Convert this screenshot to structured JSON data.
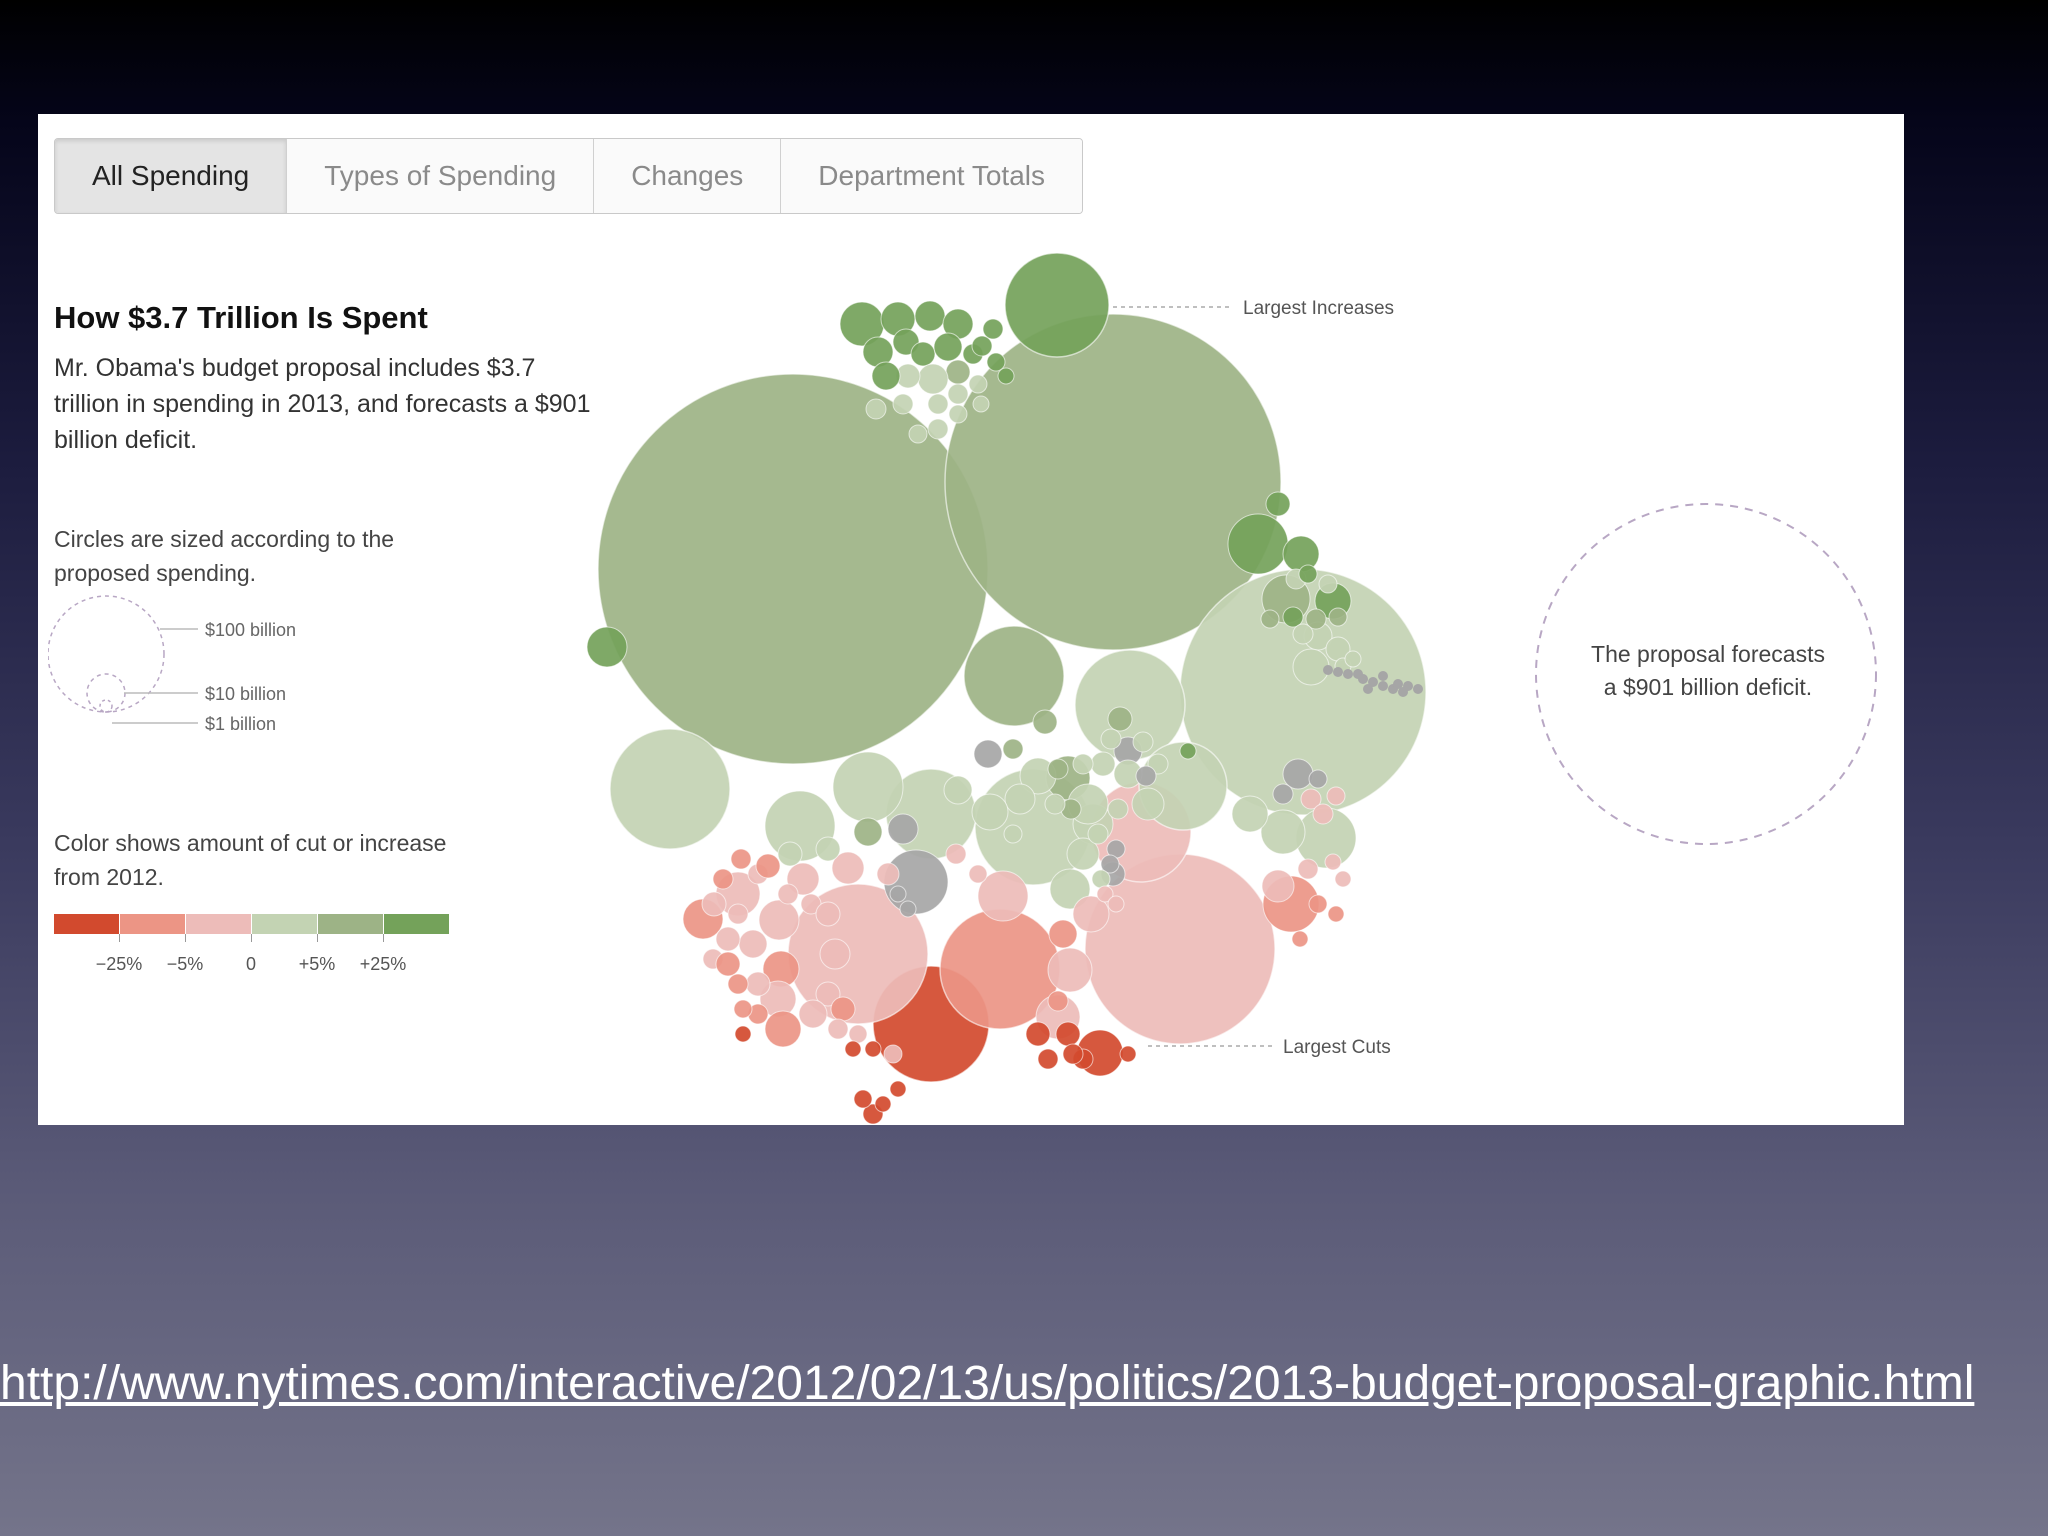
{
  "tabs": [
    {
      "label": "All Spending",
      "active": true
    },
    {
      "label": "Types of Spending",
      "active": false
    },
    {
      "label": "Changes",
      "active": false
    },
    {
      "label": "Department Totals",
      "active": false
    }
  ],
  "heading": "How $3.7 Trillion Is Spent",
  "intro": "Mr. Obama's budget proposal includes $3.7 trillion in spending in 2013, and forecasts a $901 billion deficit.",
  "size_legend": {
    "note": "Circles are sized according to the proposed spending.",
    "items": [
      "$100 billion",
      "$10 billion",
      "$1 billion"
    ]
  },
  "color_legend": {
    "note": "Color shows amount of cut or increase from 2012.",
    "colors": [
      "#d24a2e",
      "#ec9585",
      "#edbcb9",
      "#c3d3b3",
      "#9db386",
      "#74a25a"
    ],
    "ticks": [
      "−25%",
      "−5%",
      "0",
      "+5%",
      "+25%"
    ]
  },
  "annotations": {
    "increases": "Largest Increases",
    "cuts": "Largest Cuts",
    "deficit": [
      "The proposal forecasts",
      "a $901 billion deficit."
    ]
  },
  "palette": {
    "dark_green": "#74a25a",
    "mid_green": "#9db386",
    "light_green": "#c3d3b3",
    "light_red": "#edbcb9",
    "mid_red": "#ec9585",
    "dark_red": "#d24a2e",
    "gray": "#a6a6a6"
  },
  "url": "http://www.nytimes.com/interactive/2012/02/13/us/politics/2013-budget-proposal-graphic.html"
}
